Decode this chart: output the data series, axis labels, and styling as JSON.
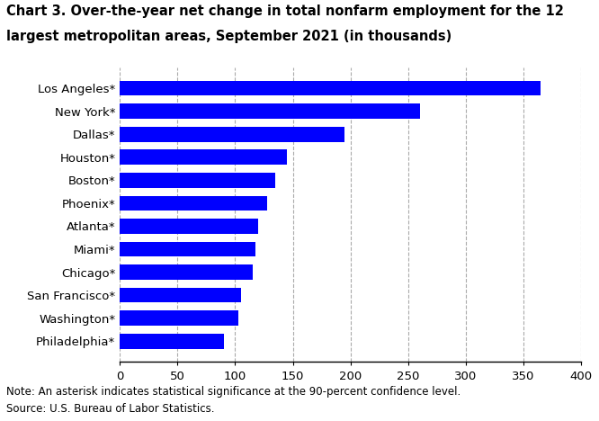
{
  "title_line1": "Chart 3. Over-the-year net change in total nonfarm employment for the 12",
  "title_line2": "largest metropolitan areas, September 2021 (in thousands)",
  "categories": [
    "Los Angeles*",
    "New York*",
    "Dallas*",
    "Houston*",
    "Boston*",
    "Phoenix*",
    "Atlanta*",
    "Miami*",
    "Chicago*",
    "San Francisco*",
    "Washington*",
    "Philadelphia*"
  ],
  "values": [
    365,
    260,
    195,
    145,
    135,
    128,
    120,
    118,
    115,
    105,
    103,
    90
  ],
  "bar_color": "#0000FF",
  "xlim": [
    0,
    400
  ],
  "xticks": [
    0,
    50,
    100,
    150,
    200,
    250,
    300,
    350,
    400
  ],
  "note": "Note: An asterisk indicates statistical significance at the 90-percent confidence level.",
  "source": "Source: U.S. Bureau of Labor Statistics.",
  "background_color": "#ffffff",
  "grid_color": "#aaaaaa",
  "title_fontsize": 10.5,
  "tick_fontsize": 9.5,
  "note_fontsize": 8.5
}
